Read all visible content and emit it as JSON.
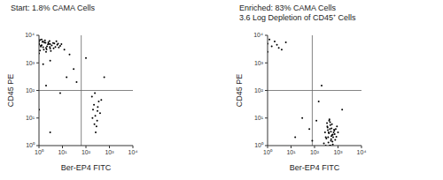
{
  "chart_data": [
    {
      "type": "scatter",
      "title": "Start: 1.8% CAMA Cells",
      "xlabel": "Ber-EP4 FITC",
      "ylabel": "CD45 PE",
      "log": true,
      "color": "#000000",
      "marker": "dot",
      "xlim": [
        1,
        10000
      ],
      "ylim": [
        1,
        10000
      ],
      "xticks": [
        {
          "value": 1,
          "label": "10⁰"
        },
        {
          "value": 10,
          "label": "10¹"
        },
        {
          "value": 100,
          "label": "10²"
        },
        {
          "value": 1000,
          "label": "10³"
        },
        {
          "value": 10000,
          "label": "10⁴"
        }
      ],
      "yticks": [
        {
          "value": 1,
          "label": "10⁰"
        },
        {
          "value": 10,
          "label": "10¹"
        },
        {
          "value": 100,
          "label": "10²"
        },
        {
          "value": 1000,
          "label": "10³"
        },
        {
          "value": 10000,
          "label": "10⁴"
        }
      ],
      "gate": {
        "x": 63,
        "y": 100
      },
      "x": [
        1,
        1.2,
        1.5,
        2,
        2.5,
        3,
        1.1,
        1.8,
        2.2,
        4,
        5,
        6,
        1.3,
        1.6,
        2.8,
        3.5,
        7,
        1,
        1.4,
        2,
        3,
        4.5,
        1.2,
        2.4,
        1.7,
        5.5,
        8,
        1,
        1.5,
        2.6,
        3.2,
        1.1,
        1.9,
        6.5,
        2.1,
        1.3,
        4.2,
        9,
        1,
        2.9,
        1.5,
        3,
        12,
        20,
        180,
        220,
        250,
        300,
        350,
        200,
        280,
        400,
        240,
        320,
        260,
        190,
        450,
        230,
        310,
        40,
        30,
        8,
        15,
        2,
        100,
        600,
        1,
        3
      ],
      "values": [
        5000,
        4200,
        6000,
        3500,
        5500,
        4800,
        2800,
        6500,
        4000,
        5200,
        3800,
        4500,
        7000,
        3000,
        6200,
        4300,
        3600,
        4600,
        5800,
        2500,
        3300,
        5100,
        3900,
        4700,
        5400,
        6100,
        4100,
        2200,
        3700,
        4900,
        2700,
        6800,
        5300,
        5000,
        3100,
        4400,
        3400,
        4800,
        6000,
        3800,
        900,
        1200,
        3000,
        2000,
        60,
        30,
        12,
        8,
        40,
        20,
        5,
        15,
        80,
        25,
        3,
        10,
        45,
        6,
        18,
        200,
        600,
        80,
        300,
        150,
        1500,
        300,
        20,
        3
      ]
    },
    {
      "type": "scatter",
      "title": "Enriched: 83% CAMA Cells",
      "subtitle": "3.6 Log Depletion of CD45⁺ Cells",
      "xlabel": "Ber-EP4 FITC",
      "ylabel": "CD45 PE",
      "log": true,
      "color": "#000000",
      "marker": "dot",
      "xlim": [
        1,
        10000
      ],
      "ylim": [
        1,
        10000
      ],
      "xticks": [
        {
          "value": 1,
          "label": "10⁰"
        },
        {
          "value": 10,
          "label": "10¹"
        },
        {
          "value": 100,
          "label": "10²"
        },
        {
          "value": 1000,
          "label": "10³"
        },
        {
          "value": 10000,
          "label": "10⁴"
        }
      ],
      "yticks": [
        {
          "value": 1,
          "label": "10⁰"
        },
        {
          "value": 10,
          "label": "10¹"
        },
        {
          "value": 100,
          "label": "10²"
        },
        {
          "value": 1000,
          "label": "10³"
        },
        {
          "value": 10000,
          "label": "10⁴"
        }
      ],
      "gate": {
        "x": 80,
        "y": 100
      },
      "x": [
        300,
        400,
        500,
        350,
        450,
        600,
        700,
        250,
        550,
        380,
        420,
        480,
        650,
        800,
        320,
        520,
        900,
        280,
        460,
        580,
        720,
        360,
        440,
        500,
        620,
        340,
        760,
        410,
        530,
        1000,
        300,
        470,
        560,
        390,
        680,
        430,
        510,
        850,
        370,
        600,
        1,
        1.5,
        2,
        3,
        1.2,
        2.5,
        4,
        1,
        6,
        30,
        60,
        150,
        15,
        200,
        1500,
        80,
        120
      ],
      "values": [
        2,
        3,
        1.5,
        5,
        4,
        2.5,
        3.5,
        1.2,
        6,
        2,
        8,
        1,
        3,
        4,
        1.8,
        2.2,
        5,
        3,
        7,
        1.4,
        2.6,
        4.5,
        1,
        3.2,
        2,
        6.5,
        1.6,
        2.8,
        4.2,
        3,
        1,
        5.5,
        2.4,
        1.3,
        3.8,
        9,
        1.7,
        2.1,
        3.6,
        1.1,
        5000,
        4000,
        6000,
        3500,
        7000,
        4500,
        3000,
        2500,
        5500,
        10,
        4,
        40,
        2,
        150,
        20,
        1.5,
        8
      ]
    }
  ]
}
